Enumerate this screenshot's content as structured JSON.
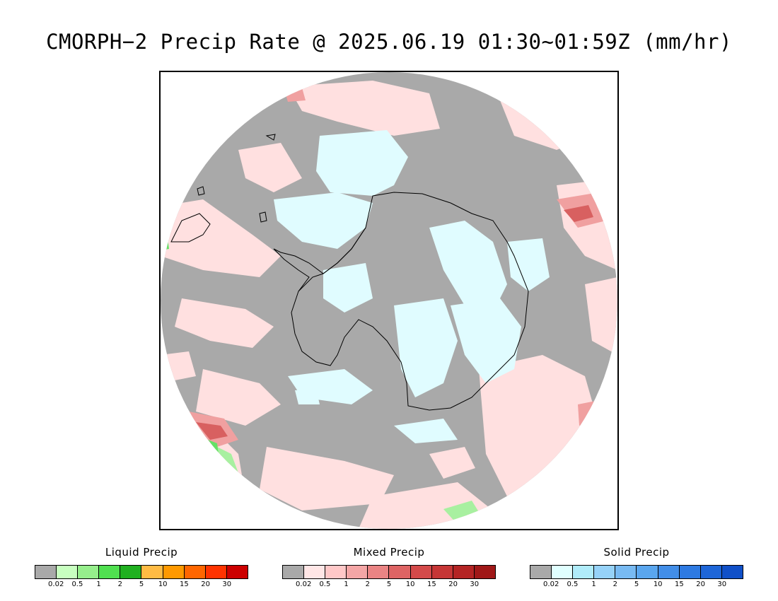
{
  "title": "CMORPH−2 Precip Rate @ 2025.06.19 01:30~01:59Z (mm/hr)",
  "map": {
    "projection": "south-polar-stereographic",
    "colors": {
      "no_precip": "#a9a9a9",
      "mixed_light": "#ffe0e0",
      "mixed_mid": "#f0a0a0",
      "mixed_heavy": "#d86060",
      "solid_light": "#e0fcff",
      "liquid_light": "#a8f0a0",
      "liquid_mid": "#66e066",
      "coastline": "#000000"
    }
  },
  "legends": [
    {
      "title": "Liquid Precip",
      "colors": [
        "#a9a9a9",
        "#c8ffc0",
        "#96ee8c",
        "#50e050",
        "#20b020",
        "#ffbb44",
        "#ff9900",
        "#ff6600",
        "#ff3300",
        "#cc0000"
      ],
      "ticks": [
        "0.02",
        "0.5",
        "1",
        "2",
        "5",
        "10",
        "15",
        "20",
        "30"
      ]
    },
    {
      "title": "Mixed Precip",
      "colors": [
        "#a9a9a9",
        "#ffe6e6",
        "#ffc8c8",
        "#f4a6a6",
        "#ea8484",
        "#de6464",
        "#d44a4a",
        "#c63636",
        "#b42424",
        "#a01818"
      ],
      "ticks": [
        "0.02",
        "0.5",
        "1",
        "2",
        "5",
        "10",
        "15",
        "20",
        "30"
      ]
    },
    {
      "title": "Solid Precip",
      "colors": [
        "#a9a9a9",
        "#e0ffff",
        "#b0ecfa",
        "#96d2f8",
        "#78baf2",
        "#5aa6ee",
        "#428ee8",
        "#2e7ae2",
        "#1e66d8",
        "#1050c8"
      ],
      "ticks": [
        "0.02",
        "0.5",
        "1",
        "2",
        "5",
        "10",
        "15",
        "20",
        "30"
      ]
    }
  ]
}
